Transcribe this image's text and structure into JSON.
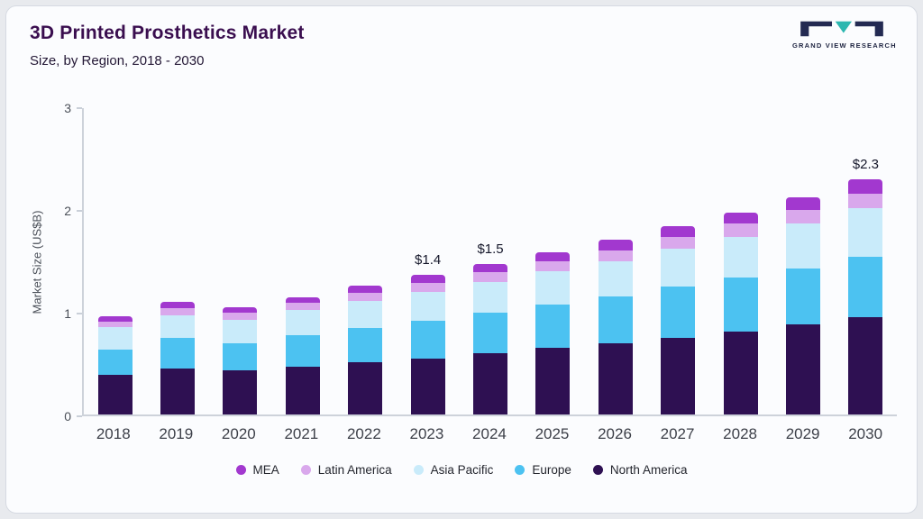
{
  "header": {
    "title": "3D Printed Prosthetics Market",
    "subtitle": "Size, by Region, 2018 - 2030",
    "brand": "GRAND VIEW RESEARCH"
  },
  "brand_colors": {
    "logo_dark": "#232a52",
    "logo_teal": "#2cb7b0"
  },
  "chart_data": {
    "type": "bar",
    "stacked": true,
    "title": "3D Printed Prosthetics Market Size, by Region, 2018 - 2030",
    "xlabel": "",
    "ylabel": "Market Size (US$B)",
    "ylim": [
      0,
      3
    ],
    "yticks": [
      0,
      1,
      2,
      3
    ],
    "grid": false,
    "legend_position": "bottom",
    "categories": [
      "2018",
      "2019",
      "2020",
      "2021",
      "2022",
      "2023",
      "2024",
      "2025",
      "2026",
      "2027",
      "2028",
      "2029",
      "2030"
    ],
    "series": [
      {
        "name": "North America",
        "color": "#2e1052",
        "values": [
          0.4,
          0.45,
          0.43,
          0.47,
          0.51,
          0.55,
          0.6,
          0.65,
          0.7,
          0.75,
          0.81,
          0.88,
          0.95
        ]
      },
      {
        "name": "Europe",
        "color": "#4cc2f1",
        "values": [
          0.25,
          0.3,
          0.27,
          0.31,
          0.34,
          0.37,
          0.4,
          0.43,
          0.46,
          0.5,
          0.53,
          0.55,
          0.59
        ]
      },
      {
        "name": "Asia Pacific",
        "color": "#c9ebfa",
        "values": [
          0.22,
          0.22,
          0.23,
          0.24,
          0.26,
          0.28,
          0.3,
          0.32,
          0.34,
          0.37,
          0.4,
          0.44,
          0.48
        ]
      },
      {
        "name": "Latin America",
        "color": "#d9a8ec",
        "values": [
          0.06,
          0.07,
          0.07,
          0.07,
          0.08,
          0.09,
          0.09,
          0.1,
          0.11,
          0.12,
          0.13,
          0.13,
          0.14
        ]
      },
      {
        "name": "MEA",
        "color": "#a238cf",
        "values": [
          0.05,
          0.06,
          0.05,
          0.06,
          0.07,
          0.08,
          0.08,
          0.09,
          0.1,
          0.1,
          0.11,
          0.13,
          0.14
        ]
      }
    ],
    "annotations": [
      {
        "category": "2023",
        "text": "$1.4"
      },
      {
        "category": "2024",
        "text": "$1.5"
      },
      {
        "category": "2030",
        "text": "$2.3"
      }
    ],
    "legend": [
      "MEA",
      "Latin America",
      "Asia Pacific",
      "Europe",
      "North America"
    ]
  }
}
